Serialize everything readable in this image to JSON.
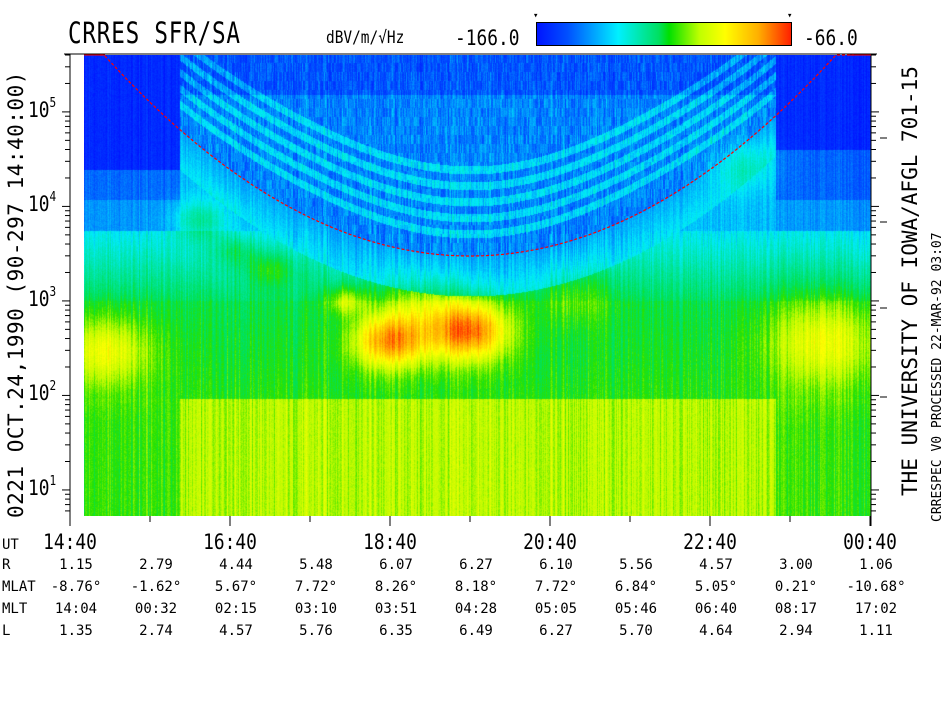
{
  "header": {
    "title": "CRRES SFR/SA",
    "units": "dBV/m/√Hz",
    "colorbar_min_label": "-166.0",
    "colorbar_max_label": "-66.0",
    "colorbar_marker": "▾"
  },
  "left_label": "0221  OCT.24,1990  (90-297 14:40:00)",
  "right_label": "THE UNIVERSITY OF IOWA/AFGL 701-15",
  "right_small_label": "CRRESPEC V0   PROCESSED 22-MAR-92  03:07",
  "chart_data": {
    "type": "heatmap",
    "title": "CRRES SFR/SA",
    "colorbar": {
      "units": "dBV/m/√Hz",
      "range": [
        -166.0,
        -66.0
      ],
      "colors": [
        "#0014ff",
        "#00f0ff",
        "#00e000",
        "#ffff00",
        "#ff2000"
      ]
    },
    "y_axis": {
      "scale": "log",
      "range": [
        5.3,
        400000
      ],
      "ticks": [
        {
          "base": "10",
          "exp": "1",
          "value": 10
        },
        {
          "base": "10",
          "exp": "2",
          "value": 100
        },
        {
          "base": "10",
          "exp": "3",
          "value": 1000
        },
        {
          "base": "10",
          "exp": "4",
          "value": 10000
        },
        {
          "base": "10",
          "exp": "5",
          "value": 100000
        }
      ]
    },
    "x_axis": {
      "label": "UT",
      "range": [
        "14:40",
        "00:40"
      ],
      "tick_labels": [
        "14:40",
        "16:40",
        "18:40",
        "20:40",
        "22:40",
        "00:40"
      ]
    },
    "overlay_curve_color": "#ff0000",
    "ephemeris": [
      {
        "label": "R",
        "values": [
          "1.15",
          "2.79",
          "4.44",
          "5.48",
          "6.07",
          "6.27",
          "6.10",
          "5.56",
          "4.57",
          "3.00",
          "1.06"
        ]
      },
      {
        "label": "MLAT",
        "values": [
          "-8.76°",
          "-1.62°",
          "5.67°",
          "7.72°",
          "8.26°",
          "8.18°",
          "7.72°",
          "6.84°",
          "5.05°",
          "0.21°",
          "-10.68°"
        ]
      },
      {
        "label": "MLT",
        "values": [
          "14:04",
          "00:32",
          "02:15",
          "03:10",
          "03:51",
          "04:28",
          "05:05",
          "05:46",
          "06:40",
          "08:17",
          "17:02"
        ]
      },
      {
        "label": "L",
        "values": [
          "1.35",
          "2.74",
          "4.57",
          "5.76",
          "6.35",
          "6.49",
          "6.27",
          "5.70",
          "4.64",
          "2.94",
          "1.11"
        ]
      }
    ]
  }
}
